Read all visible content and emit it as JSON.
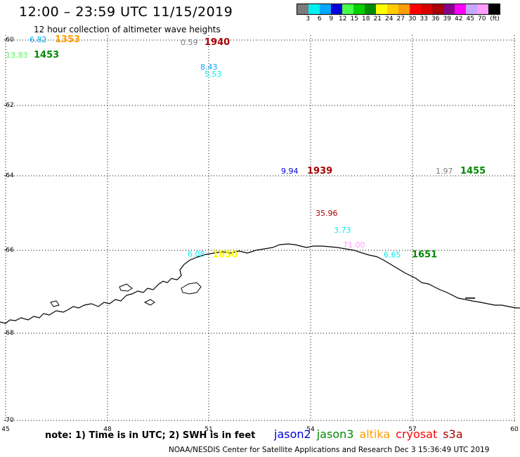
{
  "header": {
    "title": "12:00 – 23:59 UTC 11/15/2019",
    "subtitle": "12 hour collection of altimeter wave heights"
  },
  "legend": {
    "colors": [
      "#7b7b7b",
      "#00f0f0",
      "#00a8ff",
      "#0000d8",
      "#47ff47",
      "#00d000",
      "#008a00",
      "#ffff00",
      "#ffcd00",
      "#ff9d00",
      "#ff0000",
      "#d80000",
      "#a80000",
      "#880088",
      "#ff00ff",
      "#c8a8ff",
      "#ff9cff",
      "#000000"
    ],
    "labels": [
      "3",
      "6",
      "9",
      "12",
      "15",
      "18",
      "21",
      "24",
      "27",
      "30",
      "33",
      "36",
      "39",
      "42",
      "45",
      "70"
    ],
    "unit": "(ft)"
  },
  "axes": {
    "y_labels": [
      "-60",
      "-62",
      "-64",
      "-66",
      "-68",
      "-70"
    ],
    "x_labels": [
      "45",
      "48",
      "51",
      "54",
      "57",
      "60"
    ]
  },
  "observations": [
    {
      "value": "6.82",
      "color": "#00a8ff"
    },
    {
      "value": "1353",
      "color": "#ff9d00",
      "time": true
    },
    {
      "value": "13.83",
      "color": "#47ff47"
    },
    {
      "value": "1453",
      "color": "#008a00",
      "time": true
    },
    {
      "value": "0.59",
      "color": "#7b7b7b"
    },
    {
      "value": "1940",
      "color": "#a80000",
      "time": true
    },
    {
      "value": "8.43",
      "color": "#00a8ff"
    },
    {
      "value": "5.53",
      "color": "#00f0f0"
    },
    {
      "value": "9.94",
      "color": "#0000d8"
    },
    {
      "value": "1939",
      "color": "#a80000",
      "time": true
    },
    {
      "value": "1.97",
      "color": "#7b7b7b"
    },
    {
      "value": "1455",
      "color": "#008a00",
      "time": true
    },
    {
      "value": "35.96",
      "color": "#a80000"
    },
    {
      "value": "3.73",
      "color": "#00f0f0"
    },
    {
      "value": "71.00",
      "color": "#ff9cff"
    },
    {
      "value": "6.08",
      "color": "#00f0f0"
    },
    {
      "value": "1650",
      "color": "#ffff00",
      "time": true
    },
    {
      "value": "6.65",
      "color": "#00f0f0"
    },
    {
      "value": "1651",
      "color": "#008a00",
      "time": true
    }
  ],
  "footer": {
    "note": "note: 1) Time is in UTC; 2) SWH is in feet",
    "satellites": [
      {
        "name": "jason2",
        "color": "#0000d8"
      },
      {
        "name": "jason3",
        "color": "#008a00"
      },
      {
        "name": "altika",
        "color": "#ff9d00"
      },
      {
        "name": "cryosat",
        "color": "#ff0000"
      },
      {
        "name": "s3a",
        "color": "#a80000"
      }
    ],
    "credit": "NOAA/NESDIS Center for Satellite Applications and Research    Dec  3 15:36:49 UTC 2019"
  }
}
